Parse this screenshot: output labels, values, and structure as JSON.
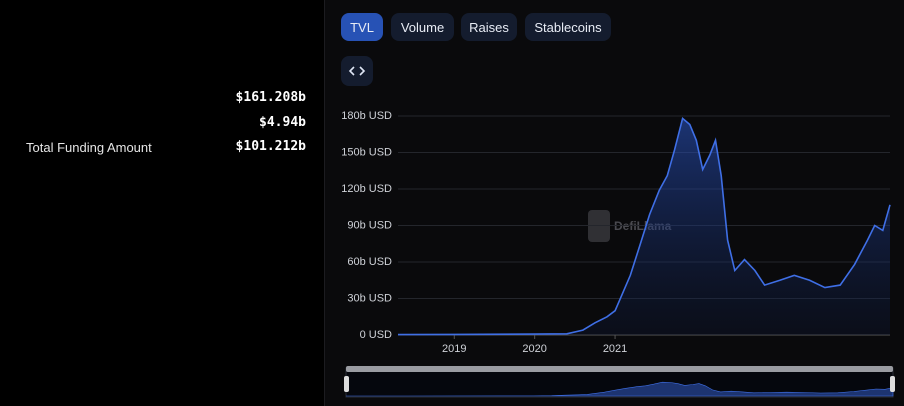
{
  "tabs": [
    "TVL",
    "Volume",
    "Raises",
    "Stablecoins"
  ],
  "stats": [
    {
      "value": "$161.208b"
    },
    {
      "value": "$4.94b"
    },
    {
      "label": "Total Funding Amount",
      "value": "$101.212b"
    }
  ],
  "chart_data": {
    "type": "area",
    "watermark": "DefiLlama",
    "x": [
      2018.3,
      2019,
      2020,
      2020.4,
      2020.6,
      2020.75,
      2020.9,
      2021.0,
      2021.19,
      2021.31,
      2021.43,
      2021.55,
      2021.65,
      2021.74,
      2021.84,
      2021.93,
      2022.01,
      2022.09,
      2022.18,
      2022.25,
      2022.32,
      2022.4,
      2022.49,
      2022.61,
      2022.74,
      2022.86,
      2023.05,
      2023.23,
      2023.42,
      2023.61,
      2023.8,
      2023.98,
      2024.14,
      2024.23,
      2024.33,
      2024.42
    ],
    "series": [
      {
        "color": "#3f6fe6",
        "values": [
          0.3,
          0.5,
          0.7,
          1,
          4,
          10,
          15,
          20,
          49,
          74,
          99,
          119,
          131,
          152,
          178,
          173,
          160,
          136,
          148,
          160,
          131,
          78,
          53,
          62,
          53,
          41,
          45,
          49,
          45,
          39,
          41,
          58,
          78,
          90,
          86,
          107
        ]
      }
    ],
    "xlim": [
      2018.3,
      2024.42
    ],
    "xticks": [
      2019,
      2020,
      2021
    ],
    "ylim": [
      0,
      180
    ],
    "yticks": [
      {
        "value": 0,
        "label": "0 USD"
      },
      {
        "value": 30,
        "label": "30b USD"
      },
      {
        "value": 60,
        "label": "60b USD"
      },
      {
        "value": 90,
        "label": "90b USD"
      },
      {
        "value": 120,
        "label": "120b USD"
      },
      {
        "value": 150,
        "label": "150b USD"
      },
      {
        "value": 180,
        "label": "180b USD"
      }
    ],
    "grid": true
  }
}
